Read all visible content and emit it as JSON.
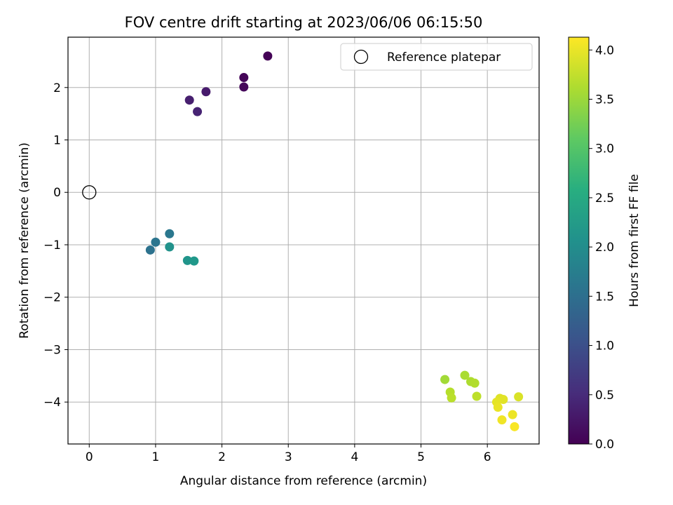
{
  "chart_data": {
    "type": "scatter",
    "title": "FOV centre drift starting at 2023/06/06 06:15:50",
    "xlabel": "Angular distance from reference (arcmin)",
    "ylabel": "Rotation from reference (arcmin)",
    "xlim": [
      -0.32,
      6.78
    ],
    "ylim": [
      -4.8,
      2.96
    ],
    "xticks": [
      0,
      1,
      2,
      3,
      4,
      5,
      6
    ],
    "yticks": [
      -4,
      -3,
      -2,
      -1,
      0,
      1,
      2
    ],
    "xtick_labels": [
      "0",
      "1",
      "2",
      "3",
      "4",
      "5",
      "6"
    ],
    "ytick_labels": [
      "−4",
      "−3",
      "−2",
      "−1",
      "0",
      "1",
      "2"
    ],
    "grid": true,
    "legend": {
      "position": "top-right",
      "entries": [
        {
          "label": "Reference platepar",
          "marker": "open-circle"
        }
      ]
    },
    "reference": {
      "x": 0,
      "y": 0
    },
    "colorbar": {
      "label": "Hours from first FF file",
      "colormap": "viridis",
      "range": [
        0,
        4.13
      ],
      "ticks": [
        0.0,
        0.5,
        1.0,
        1.5,
        2.0,
        2.5,
        3.0,
        3.5,
        4.0
      ],
      "tick_labels": [
        "0.0",
        "0.5",
        "1.0",
        "1.5",
        "2.0",
        "2.5",
        "3.0",
        "3.5",
        "4.0"
      ]
    },
    "points": [
      {
        "x": 2.69,
        "y": 2.6,
        "c": 0.02
      },
      {
        "x": 2.33,
        "y": 2.19,
        "c": 0.05
      },
      {
        "x": 2.33,
        "y": 2.01,
        "c": 0.08
      },
      {
        "x": 1.76,
        "y": 1.92,
        "c": 0.3
      },
      {
        "x": 1.51,
        "y": 1.76,
        "c": 0.35
      },
      {
        "x": 1.63,
        "y": 1.54,
        "c": 0.4
      },
      {
        "x": 1.21,
        "y": -0.79,
        "c": 1.65
      },
      {
        "x": 1.0,
        "y": -0.95,
        "c": 1.6
      },
      {
        "x": 0.92,
        "y": -1.1,
        "c": 1.55
      },
      {
        "x": 1.21,
        "y": -1.04,
        "c": 2.1
      },
      {
        "x": 1.48,
        "y": -1.3,
        "c": 2.15
      },
      {
        "x": 1.58,
        "y": -1.31,
        "c": 2.2
      },
      {
        "x": 5.36,
        "y": -3.57,
        "c": 3.55
      },
      {
        "x": 5.66,
        "y": -3.49,
        "c": 3.6
      },
      {
        "x": 5.75,
        "y": -3.61,
        "c": 3.62
      },
      {
        "x": 5.81,
        "y": -3.64,
        "c": 3.65
      },
      {
        "x": 5.44,
        "y": -3.81,
        "c": 3.67
      },
      {
        "x": 5.46,
        "y": -3.92,
        "c": 3.7
      },
      {
        "x": 5.84,
        "y": -3.89,
        "c": 3.72
      },
      {
        "x": 6.47,
        "y": -3.9,
        "c": 3.9
      },
      {
        "x": 6.19,
        "y": -3.93,
        "c": 3.93
      },
      {
        "x": 6.24,
        "y": -3.95,
        "c": 3.95
      },
      {
        "x": 6.14,
        "y": -4.0,
        "c": 3.97
      },
      {
        "x": 6.16,
        "y": -4.1,
        "c": 4.0
      },
      {
        "x": 6.38,
        "y": -4.24,
        "c": 4.02
      },
      {
        "x": 6.22,
        "y": -4.34,
        "c": 4.05
      },
      {
        "x": 6.41,
        "y": -4.47,
        "c": 4.1
      }
    ]
  }
}
